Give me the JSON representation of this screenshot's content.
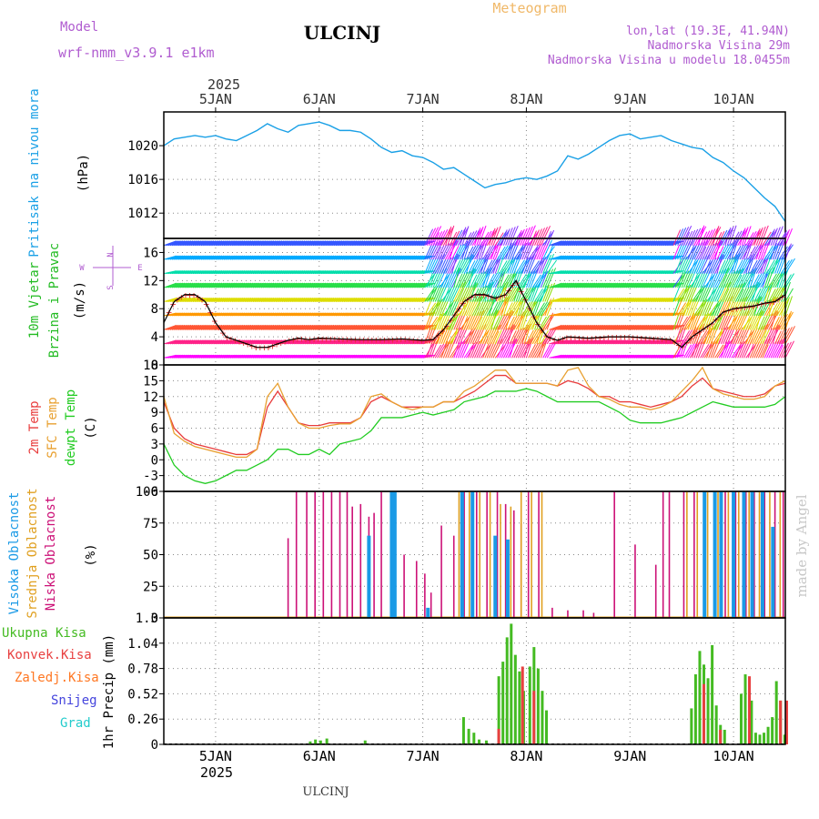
{
  "header": {
    "model_label": "Model",
    "model_name": "wrf-nmm_v3.9.1  e1km",
    "station": "ULCINJ",
    "meteogram": "Meteogram",
    "lonlat": "lon,lat (19.3E, 41.94N)",
    "altitude": "Nadmorska Visina 29m",
    "model_altitude": "Nadmorska Visina u modelu 18.0455m",
    "footer_station": "ULCINJ",
    "watermark": "made by Angel",
    "year": "2025"
  },
  "colors": {
    "pressure": "#1aa0e6",
    "wind_speed": "#000000",
    "gust_marker": "#e83030",
    "temp_2m": "#e83c3c",
    "temp_sfc": "#e8a030",
    "dewpoint": "#22cc22",
    "cloud_high": "#1a9ae6",
    "cloud_mid": "#e0a020",
    "cloud_low": "#cc1177",
    "precip_total": "#44bb22",
    "precip_conv": "#e84040",
    "precip_frz": "#ff7722",
    "snow": "#4444dd",
    "hail": "#22cccc"
  },
  "time_axis": {
    "top_labels": [
      "5JAN",
      "6JAN",
      "7JAN",
      "8JAN",
      "9JAN",
      "10JAN"
    ],
    "bottom_labels": [
      "5JAN",
      "6JAN",
      "7JAN",
      "8JAN",
      "9JAN",
      "10JAN"
    ],
    "day_values": [
      5,
      6,
      7,
      8,
      9,
      10
    ],
    "range_days": [
      4.5,
      10.5
    ]
  },
  "chart_data": [
    {
      "type": "line",
      "panel": "pressure",
      "ylabel_lines": [
        "Pritisak na nivou mora",
        "(hPa)"
      ],
      "ylim": [
        1009,
        1024
      ],
      "yticks": [
        1012,
        1016,
        1020
      ],
      "series": [
        {
          "x": [
            4.5,
            4.6,
            4.7,
            4.8,
            4.9,
            5.0,
            5.1,
            5.2,
            5.3,
            5.4,
            5.5,
            5.6,
            5.7,
            5.8,
            5.9,
            6.0,
            6.1,
            6.2,
            6.3,
            6.4,
            6.5,
            6.6,
            6.7,
            6.8,
            6.9,
            7.0,
            7.1,
            7.2,
            7.3,
            7.4,
            7.5,
            7.6,
            7.7,
            7.8,
            7.9,
            8.0,
            8.1,
            8.2,
            8.3,
            8.4,
            8.5,
            8.6,
            8.7,
            8.8,
            8.9,
            9.0,
            9.1,
            9.2,
            9.3,
            9.4,
            9.5,
            9.6,
            9.7,
            9.8,
            9.9,
            10.0,
            10.1,
            10.2,
            10.3,
            10.4,
            10.5
          ],
          "values": [
            1020.0,
            1020.8,
            1021.0,
            1021.2,
            1021.0,
            1021.2,
            1020.8,
            1020.6,
            1021.2,
            1021.8,
            1022.6,
            1022.0,
            1021.6,
            1022.4,
            1022.6,
            1022.8,
            1022.4,
            1021.8,
            1021.8,
            1021.6,
            1020.8,
            1019.8,
            1019.2,
            1019.4,
            1018.8,
            1018.6,
            1018.0,
            1017.2,
            1017.4,
            1016.6,
            1015.8,
            1015.0,
            1015.4,
            1015.6,
            1016.0,
            1016.2,
            1016.0,
            1016.4,
            1017.0,
            1018.8,
            1018.4,
            1019.0,
            1019.8,
            1020.6,
            1021.2,
            1021.4,
            1020.8,
            1021.0,
            1021.2,
            1020.6,
            1020.2,
            1019.8,
            1019.6,
            1018.6,
            1018.0,
            1017.0,
            1016.2,
            1015.0,
            1013.8,
            1012.8,
            1011.0
          ]
        }
      ]
    },
    {
      "type": "line",
      "panel": "wind",
      "ylabel_lines": [
        "10m Vjetar",
        "Brzina i Pravac",
        "(m/s)"
      ],
      "compass": {
        "n": "N",
        "s": "S",
        "e": "E",
        "w": "W"
      },
      "ylim": [
        0,
        18
      ],
      "yticks": [
        0,
        4,
        8,
        12,
        16
      ],
      "series": [
        {
          "name": "speed",
          "x": [
            4.5,
            4.6,
            4.7,
            4.8,
            4.9,
            5.0,
            5.1,
            5.2,
            5.3,
            5.4,
            5.5,
            5.6,
            5.7,
            5.8,
            5.9,
            6.0,
            6.2,
            6.4,
            6.6,
            6.8,
            7.0,
            7.1,
            7.2,
            7.3,
            7.4,
            7.5,
            7.6,
            7.7,
            7.8,
            7.9,
            8.0,
            8.1,
            8.2,
            8.3,
            8.4,
            8.6,
            8.8,
            9.0,
            9.2,
            9.4,
            9.5,
            9.6,
            9.7,
            9.8,
            9.9,
            10.0,
            10.1,
            10.2,
            10.3,
            10.4,
            10.5
          ],
          "values": [
            6,
            9,
            10,
            10,
            9,
            6,
            4,
            3.5,
            3,
            2.5,
            2.5,
            3,
            3.5,
            3.8,
            3.6,
            3.8,
            3.7,
            3.6,
            3.6,
            3.7,
            3.5,
            3.6,
            5,
            7,
            9,
            10,
            10,
            9.5,
            10,
            12,
            9,
            6,
            4,
            3.5,
            4,
            3.8,
            4,
            4,
            3.8,
            3.6,
            2.5,
            4,
            5,
            6,
            7.5,
            8,
            8.2,
            8.4,
            8.8,
            9,
            10
          ]
        }
      ]
    },
    {
      "type": "line",
      "panel": "temperature",
      "ylabel_lines": [
        "2m Temp",
        "SFC Temp",
        "dewpt Temp",
        "(C)"
      ],
      "ylim": [
        -6,
        18
      ],
      "yticks": [
        -6,
        -3,
        0,
        3,
        6,
        9,
        12,
        15,
        18
      ],
      "x": [
        4.5,
        4.6,
        4.7,
        4.8,
        4.9,
        5.0,
        5.1,
        5.2,
        5.3,
        5.4,
        5.5,
        5.6,
        5.7,
        5.8,
        5.9,
        6.0,
        6.1,
        6.2,
        6.3,
        6.4,
        6.5,
        6.6,
        6.7,
        6.8,
        6.9,
        7.0,
        7.1,
        7.2,
        7.3,
        7.4,
        7.5,
        7.6,
        7.7,
        7.8,
        7.9,
        8.0,
        8.1,
        8.2,
        8.3,
        8.4,
        8.5,
        8.6,
        8.7,
        8.8,
        8.9,
        9.0,
        9.1,
        9.2,
        9.3,
        9.4,
        9.5,
        9.6,
        9.7,
        9.8,
        9.9,
        10.0,
        10.1,
        10.2,
        10.3,
        10.4,
        10.5
      ],
      "series": [
        {
          "name": "2m Temp",
          "values": [
            11,
            6,
            4,
            3,
            2.5,
            2,
            1.5,
            1.0,
            1.0,
            2,
            10,
            13,
            10,
            7,
            6.5,
            6.5,
            7,
            7,
            7,
            8,
            11,
            12,
            11,
            10,
            10,
            10,
            10,
            11,
            11,
            12,
            13,
            14.5,
            16,
            16,
            14.5,
            14.5,
            14.5,
            14.5,
            14,
            15,
            14.5,
            13.5,
            12,
            12,
            11,
            11,
            10.5,
            10,
            10.5,
            11,
            12,
            14,
            15.5,
            13.5,
            13,
            12.5,
            12,
            12,
            12.5,
            14,
            14.5
          ]
        },
        {
          "name": "SFC Temp",
          "values": [
            12,
            5,
            3.5,
            2.5,
            2,
            1.5,
            1.0,
            0.5,
            0.5,
            2,
            12,
            14.5,
            10,
            7,
            6,
            6,
            6.5,
            6.8,
            6.8,
            8,
            12,
            12.5,
            11,
            10,
            9.5,
            10,
            10,
            11,
            11,
            13,
            14,
            15.5,
            17,
            17,
            14.5,
            14.5,
            14.5,
            14.5,
            14,
            17,
            17.5,
            14,
            12,
            11.5,
            10.5,
            10,
            10,
            9.5,
            10,
            11,
            13,
            15,
            17.5,
            13.5,
            12.5,
            12,
            11.5,
            11.5,
            12,
            14,
            15
          ]
        },
        {
          "name": "dewpt Temp",
          "values": [
            3,
            -1,
            -3,
            -4,
            -4.5,
            -4,
            -3,
            -2,
            -2,
            -1,
            0,
            2,
            2,
            1,
            1,
            2,
            1,
            3,
            3.5,
            4,
            5.5,
            8,
            8,
            8,
            8.5,
            9,
            8.5,
            9,
            9.5,
            11,
            11.5,
            12,
            13,
            13,
            13,
            13.5,
            13,
            12,
            11,
            11,
            11,
            11,
            11,
            10,
            9,
            7.5,
            7,
            7,
            7,
            7.5,
            8,
            9,
            10,
            11,
            10.5,
            10,
            10,
            10,
            10,
            10.5,
            12
          ]
        }
      ]
    },
    {
      "type": "bar",
      "panel": "clouds",
      "ylabel_lines": [
        "Visoka Oblacnost",
        "Srednja Oblacnost",
        "Niska Oblacnost",
        "(%)"
      ],
      "ylim": [
        0,
        100
      ],
      "yticks": [
        0,
        25,
        50,
        75,
        100
      ],
      "series": [
        {
          "name": "Niska Oblacnost",
          "x": [
            5.7,
            5.78,
            5.88,
            5.96,
            6.04,
            6.12,
            6.2,
            6.27,
            6.32,
            6.4,
            6.48,
            6.53,
            6.6,
            6.7,
            6.82,
            6.94,
            7.02,
            7.08,
            7.18,
            7.3,
            7.4,
            7.52,
            7.62,
            7.72,
            7.8,
            7.88,
            7.95,
            8.02,
            8.12,
            8.25,
            8.4,
            8.55,
            8.65,
            8.85,
            9.05,
            9.25,
            9.32,
            9.38,
            9.52,
            9.62,
            9.72,
            9.82,
            9.92,
            10.02,
            10.12,
            10.2,
            10.3,
            10.4,
            10.48
          ],
          "values": [
            63,
            100,
            100,
            100,
            100,
            100,
            100,
            100,
            88,
            90,
            80,
            83,
            100,
            52,
            50,
            45,
            35,
            20,
            73,
            65,
            100,
            100,
            100,
            100,
            90,
            85,
            75,
            100,
            100,
            8,
            6,
            6,
            4,
            100,
            58,
            42,
            100,
            100,
            100,
            100,
            100,
            100,
            100,
            100,
            100,
            100,
            100,
            100,
            100
          ]
        },
        {
          "name": "Srednja Oblacnost",
          "x": [
            7.35,
            7.45,
            7.55,
            7.65,
            7.75,
            7.85,
            7.95,
            8.05,
            8.15,
            9.55,
            9.65,
            9.75,
            9.85,
            9.95,
            10.05,
            10.15,
            10.25,
            10.35,
            10.45
          ],
          "values": [
            100,
            100,
            100,
            100,
            90,
            88,
            100,
            100,
            100,
            100,
            100,
            100,
            100,
            100,
            100,
            100,
            100,
            100,
            100
          ]
        },
        {
          "name": "Visoka Oblacnost",
          "x": [
            6.48,
            6.7,
            6.73,
            7.05,
            7.38,
            7.48,
            7.7,
            7.82,
            9.72,
            9.82,
            9.88,
            10.0,
            10.1,
            10.18,
            10.28,
            10.38
          ],
          "values": [
            65,
            100,
            100,
            8,
            100,
            100,
            65,
            62,
            100,
            100,
            100,
            100,
            100,
            100,
            100,
            72
          ]
        }
      ]
    },
    {
      "type": "bar",
      "panel": "precip",
      "ylabel_lines": [
        "1hr Precip (mm)"
      ],
      "legend": [
        "Ukupna Kisa",
        "Konvek.Kisa",
        "Zaledj.Kisa",
        "Snijeg",
        "Grad"
      ],
      "ylim": [
        0,
        1.3
      ],
      "yticks": [
        0,
        0.26,
        0.52,
        0.78,
        1.04,
        1.3
      ],
      "ytick_labels": [
        "0",
        "0.26",
        "0.52",
        "0.78",
        "1.04",
        "1.3"
      ],
      "series": [
        {
          "name": "Ukupna Kisa",
          "x": [
            5.92,
            5.97,
            6.02,
            6.08,
            6.45,
            7.4,
            7.45,
            7.5,
            7.55,
            7.62,
            7.74,
            7.78,
            7.82,
            7.86,
            7.9,
            7.94,
            7.98,
            8.04,
            8.08,
            8.12,
            8.16,
            8.2,
            9.6,
            9.64,
            9.68,
            9.72,
            9.76,
            9.8,
            9.84,
            9.88,
            9.92,
            10.08,
            10.12,
            10.18,
            10.22,
            10.26,
            10.3,
            10.34,
            10.38,
            10.42,
            10.46,
            10.5
          ],
          "values": [
            0.03,
            0.05,
            0.04,
            0.06,
            0.04,
            0.28,
            0.16,
            0.12,
            0.05,
            0.04,
            0.7,
            0.85,
            1.1,
            1.24,
            0.92,
            0.75,
            0.55,
            0.8,
            1.0,
            0.78,
            0.55,
            0.35,
            0.37,
            0.72,
            0.96,
            0.82,
            0.68,
            1.02,
            0.4,
            0.2,
            0.15,
            0.52,
            0.72,
            0.45,
            0.12,
            0.1,
            0.12,
            0.18,
            0.28,
            0.65,
            0.45,
            0.1
          ]
        },
        {
          "name": "Konvek.Kisa",
          "x": [
            7.72,
            7.95,
            8.06,
            9.7,
            9.86,
            10.14,
            10.44,
            10.5
          ],
          "values": [
            0.16,
            0.8,
            0.55,
            0.62,
            0.15,
            0.7,
            0.45,
            0.45
          ]
        }
      ]
    }
  ]
}
